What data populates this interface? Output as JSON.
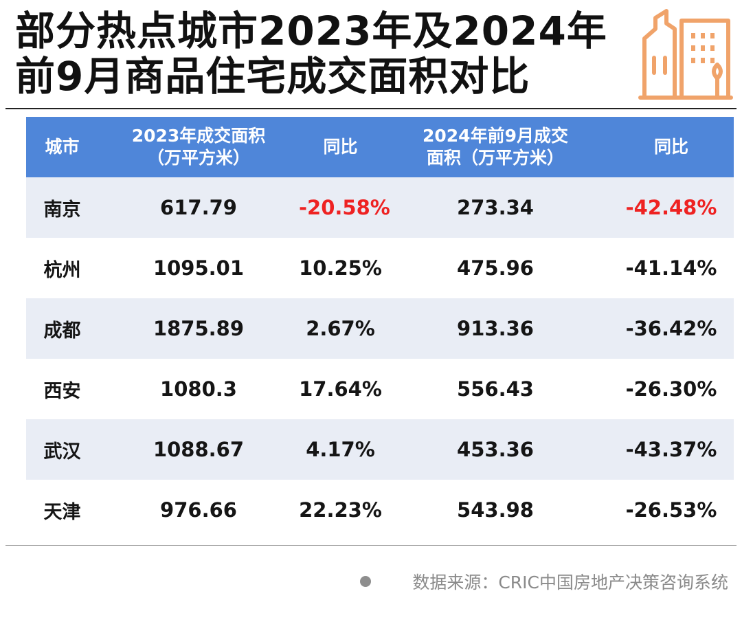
{
  "title": {
    "line1": "部分热点城市2023年及2024年",
    "line2": "前9月商品住宅成交面积对比"
  },
  "icon": "buildings-icon",
  "colors": {
    "header_bg": "#4f86d9",
    "row_shade": "#e9edf5",
    "negative_highlight": "#ee2222",
    "icon_orange": "#f0a36a"
  },
  "table": {
    "headers": [
      "城市",
      "2023年成交面积\n（万平方米）",
      "同比",
      "2024年前9月成交\n面积（万平方米）",
      "同比"
    ],
    "rows": [
      [
        "南京",
        "617.79",
        "-20.58%",
        "273.34",
        "-42.48%"
      ],
      [
        "杭州",
        "1095.01",
        "10.25%",
        "475.96",
        "-41.14%"
      ],
      [
        "成都",
        "1875.89",
        "2.67%",
        "913.36",
        "-36.42%"
      ],
      [
        "西安",
        "1080.3",
        "17.64%",
        "556.43",
        "-26.30%"
      ],
      [
        "武汉",
        "1088.67",
        "4.17%",
        "453.36",
        "-43.37%"
      ],
      [
        "天津",
        "976.66",
        "22.23%",
        "543.98",
        "-26.53%"
      ]
    ]
  },
  "source": "数据来源：CRIC中国房地产决策咨询系统"
}
